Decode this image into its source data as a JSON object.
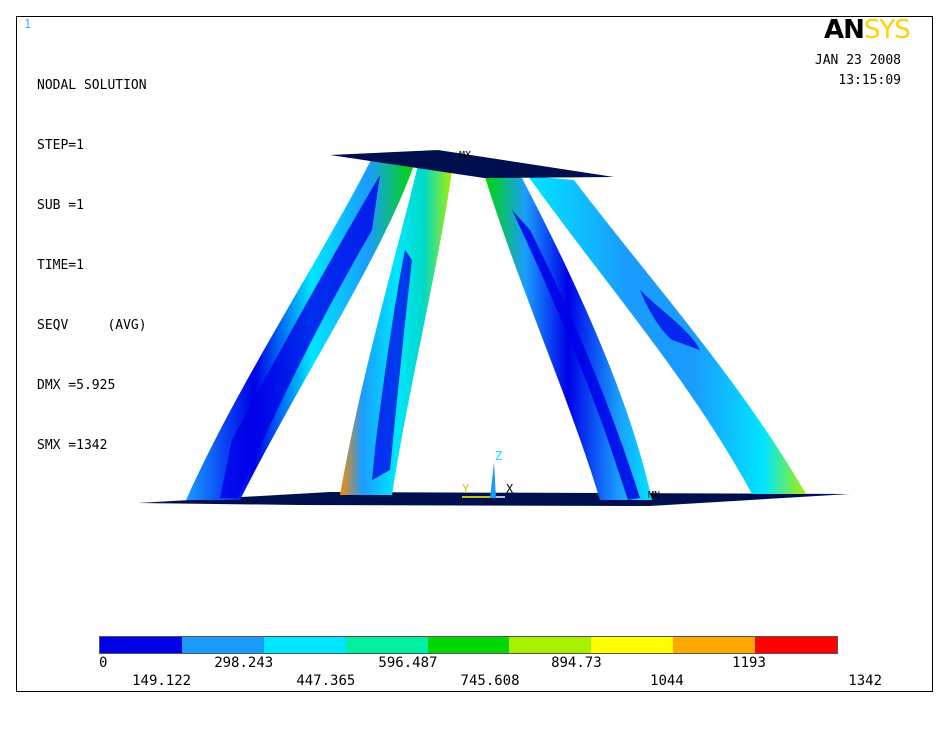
{
  "window_number": "1",
  "solution": {
    "title": "NODAL SOLUTION",
    "lines": [
      "STEP=1",
      "SUB =1",
      "TIME=1",
      "SEQV     (AVG)",
      "DMX =5.925",
      "SMX =1342"
    ]
  },
  "logo": {
    "part1": "AN",
    "part2": "SYS"
  },
  "date": "JAN 23 2008",
  "time": "13:15:09",
  "markers": {
    "max_top": "MX",
    "max_bottom": "MN",
    "axis_x": "X",
    "axis_y": "Y",
    "axis_z": "Z"
  },
  "legend": {
    "colors": [
      "#0000e8",
      "#1a9cff",
      "#00e6ff",
      "#00f0a0",
      "#00d800",
      "#a8f000",
      "#ffff00",
      "#ffa800",
      "#ff0000"
    ],
    "top_labels": [
      "0",
      "298.243",
      "596.487",
      "894.73",
      "1193"
    ],
    "bottom_labels": [
      "149.122",
      "447.365",
      "745.608",
      "1044",
      "1342"
    ]
  }
}
